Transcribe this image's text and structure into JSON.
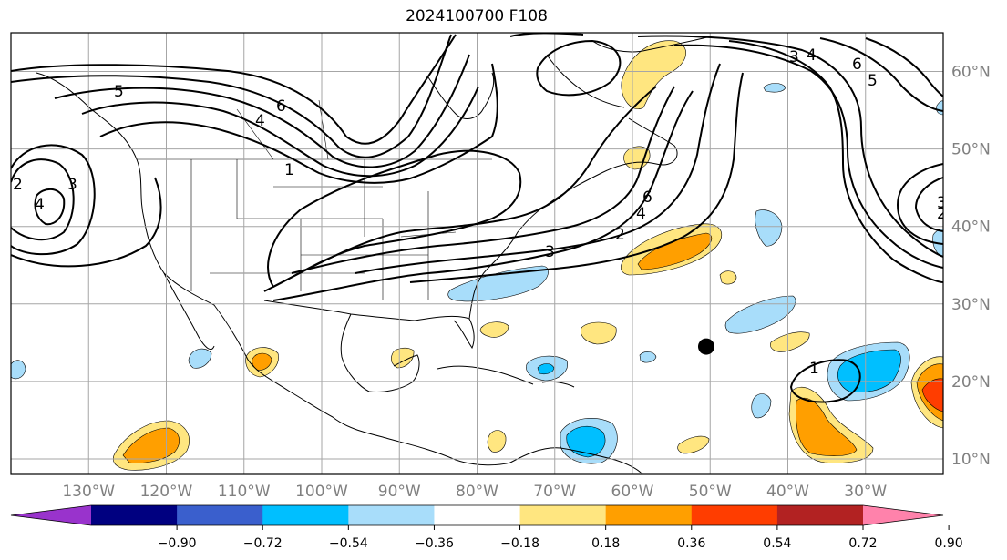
{
  "title": "2024100700 F108",
  "longitude_labels": [
    {
      "label": "130°W",
      "value": -130
    },
    {
      "label": "120°W",
      "value": -120
    },
    {
      "label": "110°W",
      "value": -110
    },
    {
      "label": "100°W",
      "value": -100
    },
    {
      "label": "90°W",
      "value": -90
    },
    {
      "label": "80°W",
      "value": -80
    },
    {
      "label": "70°W",
      "value": -70
    },
    {
      "label": "60°W",
      "value": -60
    },
    {
      "label": "50°W",
      "value": -50
    },
    {
      "label": "40°W",
      "value": -40
    },
    {
      "label": "30°W",
      "value": -30
    }
  ],
  "latitude_labels": [
    {
      "label": "60°N",
      "value": 60
    },
    {
      "label": "50°N",
      "value": 50
    },
    {
      "label": "40°N",
      "value": 40
    },
    {
      "label": "30°N",
      "value": 30
    },
    {
      "label": "20°N",
      "value": 20
    },
    {
      "label": "10°N",
      "value": 10
    }
  ],
  "map_extent": {
    "lon_min": -140,
    "lon_max": -20,
    "lat_min": 8,
    "lat_max": 65
  },
  "colorbar": {
    "ticks": [
      "−0.90",
      "−0.72",
      "−0.54",
      "−0.36",
      "−0.18",
      "0.18",
      "0.36",
      "0.54",
      "0.72",
      "0.90"
    ],
    "colors": [
      "#9933cc",
      "#000080",
      "#3a5fcd",
      "#00bfff",
      "#a8ddfa",
      "#ffffff",
      "#ffe680",
      "#ff9f00",
      "#ff3d00",
      "#b22222",
      "#ff82ab"
    ],
    "extend": "both"
  },
  "contour_labels": [
    "5",
    "4",
    "6",
    "1",
    "2",
    "3",
    "4",
    "2",
    "3",
    "6",
    "4",
    "2",
    "3",
    "3",
    "4",
    "6",
    "5",
    "1"
  ],
  "marker": {
    "name": "storm-center",
    "lon": -50.5,
    "lat": 24.5
  }
}
